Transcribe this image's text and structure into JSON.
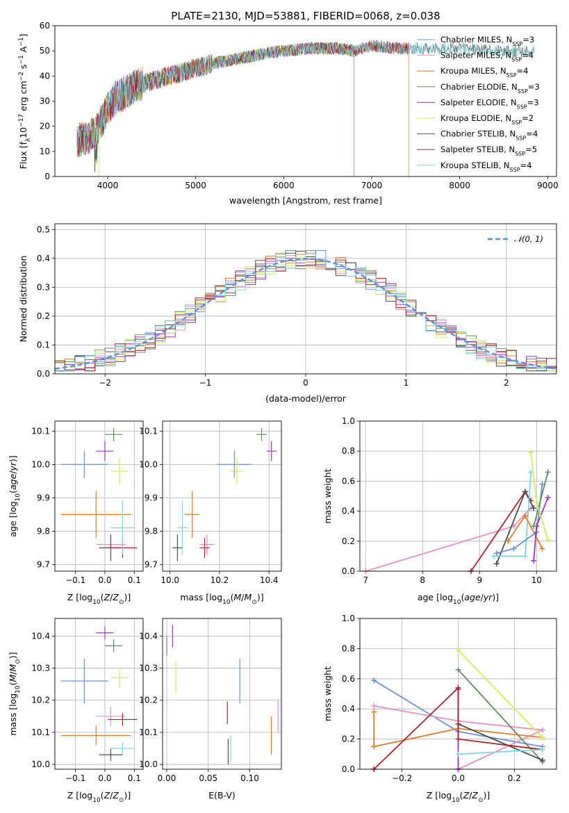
{
  "colors": {
    "cm": "#6a8fd6",
    "sm": "#e58ec4",
    "km": "#e07b2a",
    "ce": "#5e8a64",
    "se": "#9b35c0",
    "ke": "#d4ea5a",
    "cs": "#4d4d4d",
    "ss": "#a8232a",
    "ks": "#7ed6de",
    "normal": "#5f8fd6"
  },
  "chart_data": [
    {
      "id": "spectrum",
      "type": "line",
      "title": "PLATE=2130, MJD=53881, FIBERID=0068, z=0.038",
      "xlabel": "wavelength [Angstrom, rest frame]",
      "ylabel": "Flux [f_λ10^-17 erg cm^-2 s^-1 A^-1]",
      "xlim": [
        3400,
        9100
      ],
      "ylim": [
        0,
        60
      ],
      "xticks": [
        4000,
        5000,
        6000,
        7000,
        8000,
        9000
      ],
      "yticks": [
        0,
        10,
        20,
        30,
        40,
        50,
        60
      ],
      "grid": false,
      "legend_position": "right",
      "continuum_x": [
        3650,
        3800,
        3900,
        4000,
        4100,
        4200,
        4300,
        4500,
        4700,
        5000,
        5200,
        5500,
        5800,
        6000,
        6300,
        6600,
        6800,
        7000,
        7300,
        7600,
        8000,
        8400,
        8800
      ],
      "continuum_y": [
        14,
        16,
        20,
        27,
        32,
        33,
        36,
        38,
        40,
        43,
        45,
        47,
        49,
        50,
        51,
        51,
        50,
        52,
        51,
        51,
        51,
        50,
        50
      ],
      "series": [
        {
          "key": "cm",
          "label": "Chabrier MILES, N",
          "sub": "SSP",
          "eq": "=3",
          "x_end": 7420,
          "dropout": null
        },
        {
          "key": "sm",
          "label": "Salpeter MILES, N",
          "sub": "SSP",
          "eq": "=4",
          "x_end": 7420,
          "dropout": null
        },
        {
          "key": "km",
          "label": "Kroupa MILES, N",
          "sub": "SSP",
          "eq": "=4",
          "x_end": 7420,
          "dropout": 7420
        },
        {
          "key": "ce",
          "label": "Chabrier ELODIE, N",
          "sub": "SSP",
          "eq": "=3",
          "x_end": 6800,
          "dropout": 6800
        },
        {
          "key": "se",
          "label": "Salpeter ELODIE, N",
          "sub": "SSP",
          "eq": "=3",
          "x_end": 6800,
          "dropout": null
        },
        {
          "key": "ke",
          "label": "Kroupa ELODIE, N",
          "sub": "SSP",
          "eq": "=2",
          "x_end": 6800,
          "dropout": 3900
        },
        {
          "key": "cs",
          "label": "Chabrier STELIB, N",
          "sub": "SSP",
          "eq": "=4",
          "x_end": 8850,
          "dropout": null
        },
        {
          "key": "ss",
          "label": "Salpeter STELIB, N",
          "sub": "SSP",
          "eq": "=5",
          "x_end": 7420,
          "dropout": null
        },
        {
          "key": "ks",
          "label": "Kroupa STELIB, N",
          "sub": "SSP",
          "eq": "=4",
          "x_end": 8850,
          "dropout": null
        }
      ]
    },
    {
      "id": "residuals",
      "type": "bar",
      "xlabel": "(data-model)/error",
      "ylabel": "Normed distribution",
      "xlim": [
        -2.5,
        2.5
      ],
      "ylim": [
        0,
        0.52
      ],
      "xticks": [
        -2,
        -1,
        0,
        1,
        2
      ],
      "yticks": [
        0.0,
        0.1,
        0.2,
        0.3,
        0.4,
        0.5
      ],
      "grid": true,
      "legend": "𝒩(0, 1)",
      "legend_position": "top-right",
      "bin_width": 0.1,
      "reference_curve": "normal(0,1)"
    },
    {
      "id": "age_vs_Z",
      "type": "scatter",
      "xlabel": "Z [log10(Z/Z⊙)]",
      "ylabel": "age [log10(age/yr)]",
      "xlim": [
        -0.17,
        0.13
      ],
      "ylim": [
        9.68,
        10.13
      ],
      "xticks": [
        -0.1,
        0.0,
        0.1
      ],
      "yticks": [
        9.7,
        9.8,
        9.9,
        10.0,
        10.1
      ],
      "grid": true,
      "points": [
        {
          "key": "cm",
          "x": -0.07,
          "y": 10.0,
          "xerr": 0.08,
          "yerr": 0.04
        },
        {
          "key": "sm",
          "x": 0.02,
          "y": 9.76,
          "xerr": 0.05,
          "yerr": 0.03
        },
        {
          "key": "km",
          "x": -0.03,
          "y": 9.85,
          "xerr": 0.12,
          "yerr": 0.07
        },
        {
          "key": "ce",
          "x": 0.03,
          "y": 10.09,
          "xerr": 0.03,
          "yerr": 0.02
        },
        {
          "key": "se",
          "x": 0.0,
          "y": 10.04,
          "xerr": 0.03,
          "yerr": 0.03
        },
        {
          "key": "ke",
          "x": 0.05,
          "y": 9.98,
          "xerr": 0.03,
          "yerr": 0.04
        },
        {
          "key": "cs",
          "x": 0.02,
          "y": 9.75,
          "xerr": 0.04,
          "yerr": 0.04
        },
        {
          "key": "ss",
          "x": 0.06,
          "y": 9.75,
          "xerr": 0.05,
          "yerr": 0.03
        },
        {
          "key": "ks",
          "x": 0.06,
          "y": 9.81,
          "xerr": 0.04,
          "yerr": 0.08
        }
      ]
    },
    {
      "id": "age_vs_mass",
      "type": "scatter",
      "xlabel": "mass [log10(M/M⊙)]",
      "ylabel": "",
      "xlim": [
        9.97,
        10.45
      ],
      "ylim": [
        9.68,
        10.13
      ],
      "xticks": [
        10.0,
        10.2,
        10.4
      ],
      "yticks": [
        9.7,
        9.8,
        9.9,
        10.0,
        10.1
      ],
      "grid": true,
      "points": [
        {
          "key": "cm",
          "x": 10.26,
          "y": 10.0,
          "xerr": 0.07,
          "yerr": 0.04
        },
        {
          "key": "sm",
          "x": 10.15,
          "y": 9.76,
          "xerr": 0.03,
          "yerr": 0.03
        },
        {
          "key": "km",
          "x": 10.09,
          "y": 9.85,
          "xerr": 0.03,
          "yerr": 0.07
        },
        {
          "key": "ce",
          "x": 10.37,
          "y": 10.09,
          "xerr": 0.02,
          "yerr": 0.02
        },
        {
          "key": "se",
          "x": 10.41,
          "y": 10.04,
          "xerr": 0.02,
          "yerr": 0.03
        },
        {
          "key": "ke",
          "x": 10.27,
          "y": 9.98,
          "xerr": 0.03,
          "yerr": 0.04
        },
        {
          "key": "cs",
          "x": 10.03,
          "y": 9.75,
          "xerr": 0.02,
          "yerr": 0.04
        },
        {
          "key": "ss",
          "x": 10.14,
          "y": 9.75,
          "xerr": 0.02,
          "yerr": 0.03
        },
        {
          "key": "ks",
          "x": 10.05,
          "y": 9.81,
          "xerr": 0.02,
          "yerr": 0.08
        }
      ]
    },
    {
      "id": "weight_vs_age",
      "type": "line",
      "xlabel": "age [log10(age/yr)]",
      "ylabel": "mass weight",
      "xlim": [
        6.9,
        10.35
      ],
      "ylim": [
        0,
        1.0
      ],
      "xticks": [
        7,
        8,
        9,
        10
      ],
      "yticks": [
        0.0,
        0.2,
        0.4,
        0.6,
        0.8,
        1.0
      ],
      "grid": true,
      "series": [
        {
          "key": "sm",
          "x": [
            7.0,
            9.6,
            9.9
          ],
          "y": [
            0.0,
            0.3,
            0.42
          ]
        },
        {
          "key": "ss",
          "x": [
            8.85,
            9.8,
            9.9
          ],
          "y": [
            0.0,
            0.53,
            0.47
          ]
        },
        {
          "key": "cs",
          "x": [
            9.3,
            9.8,
            9.95
          ],
          "y": [
            0.05,
            0.53,
            0.42
          ]
        },
        {
          "key": "ks",
          "x": [
            9.25,
            9.8,
            9.9
          ],
          "y": [
            0.1,
            0.1,
            0.66
          ]
        },
        {
          "key": "km",
          "x": [
            9.5,
            9.8,
            10.1
          ],
          "y": [
            0.2,
            0.37,
            0.15
          ]
        },
        {
          "key": "cm",
          "x": [
            9.3,
            9.6,
            10.0,
            10.1
          ],
          "y": [
            0.12,
            0.15,
            0.26,
            0.58
          ]
        },
        {
          "key": "se",
          "x": [
            9.95,
            10.0,
            10.2
          ],
          "y": [
            0.07,
            0.3,
            0.49
          ]
        },
        {
          "key": "ce",
          "x": [
            9.95,
            10.2
          ],
          "y": [
            0.3,
            0.66
          ]
        },
        {
          "key": "ke",
          "x": [
            9.9,
            10.0,
            10.2
          ],
          "y": [
            0.79,
            0.46,
            0.21
          ]
        }
      ]
    },
    {
      "id": "mass_vs_Z",
      "type": "scatter",
      "xlabel": "Z [log10(Z/Z⊙)]",
      "ylabel": "mass [log10(M/M⊙)]",
      "xlim": [
        -0.17,
        0.13
      ],
      "ylim": [
        9.985,
        10.455
      ],
      "xticks": [
        -0.1,
        0.0,
        0.1
      ],
      "yticks": [
        10.0,
        10.1,
        10.2,
        10.3,
        10.4
      ],
      "grid": true,
      "points": [
        {
          "key": "cm",
          "x": -0.07,
          "y": 10.26,
          "xerr": 0.08,
          "yerr": 0.07
        },
        {
          "key": "sm",
          "x": 0.02,
          "y": 10.15,
          "xerr": 0.05,
          "yerr": 0.03
        },
        {
          "key": "km",
          "x": -0.03,
          "y": 10.09,
          "xerr": 0.12,
          "yerr": 0.03
        },
        {
          "key": "ce",
          "x": 0.03,
          "y": 10.37,
          "xerr": 0.03,
          "yerr": 0.02
        },
        {
          "key": "se",
          "x": 0.0,
          "y": 10.41,
          "xerr": 0.03,
          "yerr": 0.02
        },
        {
          "key": "ke",
          "x": 0.05,
          "y": 10.27,
          "xerr": 0.03,
          "yerr": 0.03
        },
        {
          "key": "cs",
          "x": 0.02,
          "y": 10.03,
          "xerr": 0.04,
          "yerr": 0.02
        },
        {
          "key": "ss",
          "x": 0.06,
          "y": 10.14,
          "xerr": 0.05,
          "yerr": 0.02
        },
        {
          "key": "ks",
          "x": 0.06,
          "y": 10.05,
          "xerr": 0.04,
          "yerr": 0.02
        }
      ]
    },
    {
      "id": "mass_vs_ebv",
      "type": "scatter",
      "xlabel": "E(B-V)",
      "ylabel": "",
      "xlim": [
        -0.005,
        0.138
      ],
      "ylim": [
        9.985,
        10.455
      ],
      "xticks": [
        0.0,
        0.05,
        0.1
      ],
      "xtick_labels": [
        "0.00",
        "0.05",
        "0.10"
      ],
      "yticks": [
        10.0,
        10.1,
        10.2,
        10.3,
        10.4
      ],
      "grid": true,
      "points": [
        {
          "key": "cm",
          "x": 0.088,
          "y": 10.26,
          "xerr": 0.0,
          "yerr": 0.07
        },
        {
          "key": "sm",
          "x": 0.134,
          "y": 10.15,
          "xerr": 0.0,
          "yerr": 0.05
        },
        {
          "key": "km",
          "x": 0.126,
          "y": 10.09,
          "xerr": 0.0,
          "yerr": 0.06
        },
        {
          "key": "ce",
          "x": 0.0,
          "y": 10.37,
          "xerr": 0.0,
          "yerr": 0.03
        },
        {
          "key": "se",
          "x": 0.007,
          "y": 10.4,
          "xerr": 0.0,
          "yerr": 0.035
        },
        {
          "key": "ke",
          "x": 0.011,
          "y": 10.27,
          "xerr": 0.0,
          "yerr": 0.05
        },
        {
          "key": "cs",
          "x": 0.074,
          "y": 10.04,
          "xerr": 0.0,
          "yerr": 0.04
        },
        {
          "key": "ss",
          "x": 0.073,
          "y": 10.16,
          "xerr": 0.0,
          "yerr": 0.035
        },
        {
          "key": "ks",
          "x": 0.077,
          "y": 10.05,
          "xerr": 0.0,
          "yerr": 0.04
        }
      ]
    },
    {
      "id": "weight_vs_Z",
      "type": "line",
      "xlabel": "Z [log10(Z/Z⊙)]",
      "ylabel": "mass weight",
      "xlim": [
        -0.35,
        0.35
      ],
      "ylim": [
        0,
        1.0
      ],
      "xticks": [
        -0.2,
        0.0,
        0.2
      ],
      "yticks": [
        0.0,
        0.2,
        0.4,
        0.6,
        0.8,
        1.0
      ],
      "grid": true,
      "series": [
        {
          "key": "cm",
          "x": [
            -0.3,
            0.0,
            0.3
          ],
          "y": [
            0.59,
            0.25,
            0.15
          ]
        },
        {
          "key": "sm",
          "x": [
            -0.3,
            0.0,
            0.3,
            0.0
          ],
          "y": [
            0.42,
            0.32,
            0.26,
            0.0
          ]
        },
        {
          "key": "km",
          "x": [
            -0.3,
            -0.3,
            0.0,
            0.3
          ],
          "y": [
            0.38,
            0.15,
            0.27,
            0.21
          ]
        },
        {
          "key": "ce",
          "x": [
            0.0,
            0.3
          ],
          "y": [
            0.66,
            0.05
          ]
        },
        {
          "key": "se",
          "x": [
            0.0,
            0.0
          ],
          "y": [
            0.53,
            0.0
          ]
        },
        {
          "key": "ke",
          "x": [
            0.0,
            0.3
          ],
          "y": [
            0.79,
            0.21
          ]
        },
        {
          "key": "cs",
          "x": [
            0.0,
            0.3
          ],
          "y": [
            0.3,
            0.06
          ]
        },
        {
          "key": "ss",
          "x": [
            -0.3,
            0.0,
            0.0,
            0.3
          ],
          "y": [
            0.0,
            0.54,
            0.2,
            0.13
          ]
        },
        {
          "key": "ks",
          "x": [
            0.0,
            0.3
          ],
          "y": [
            0.1,
            0.13
          ]
        }
      ]
    }
  ]
}
